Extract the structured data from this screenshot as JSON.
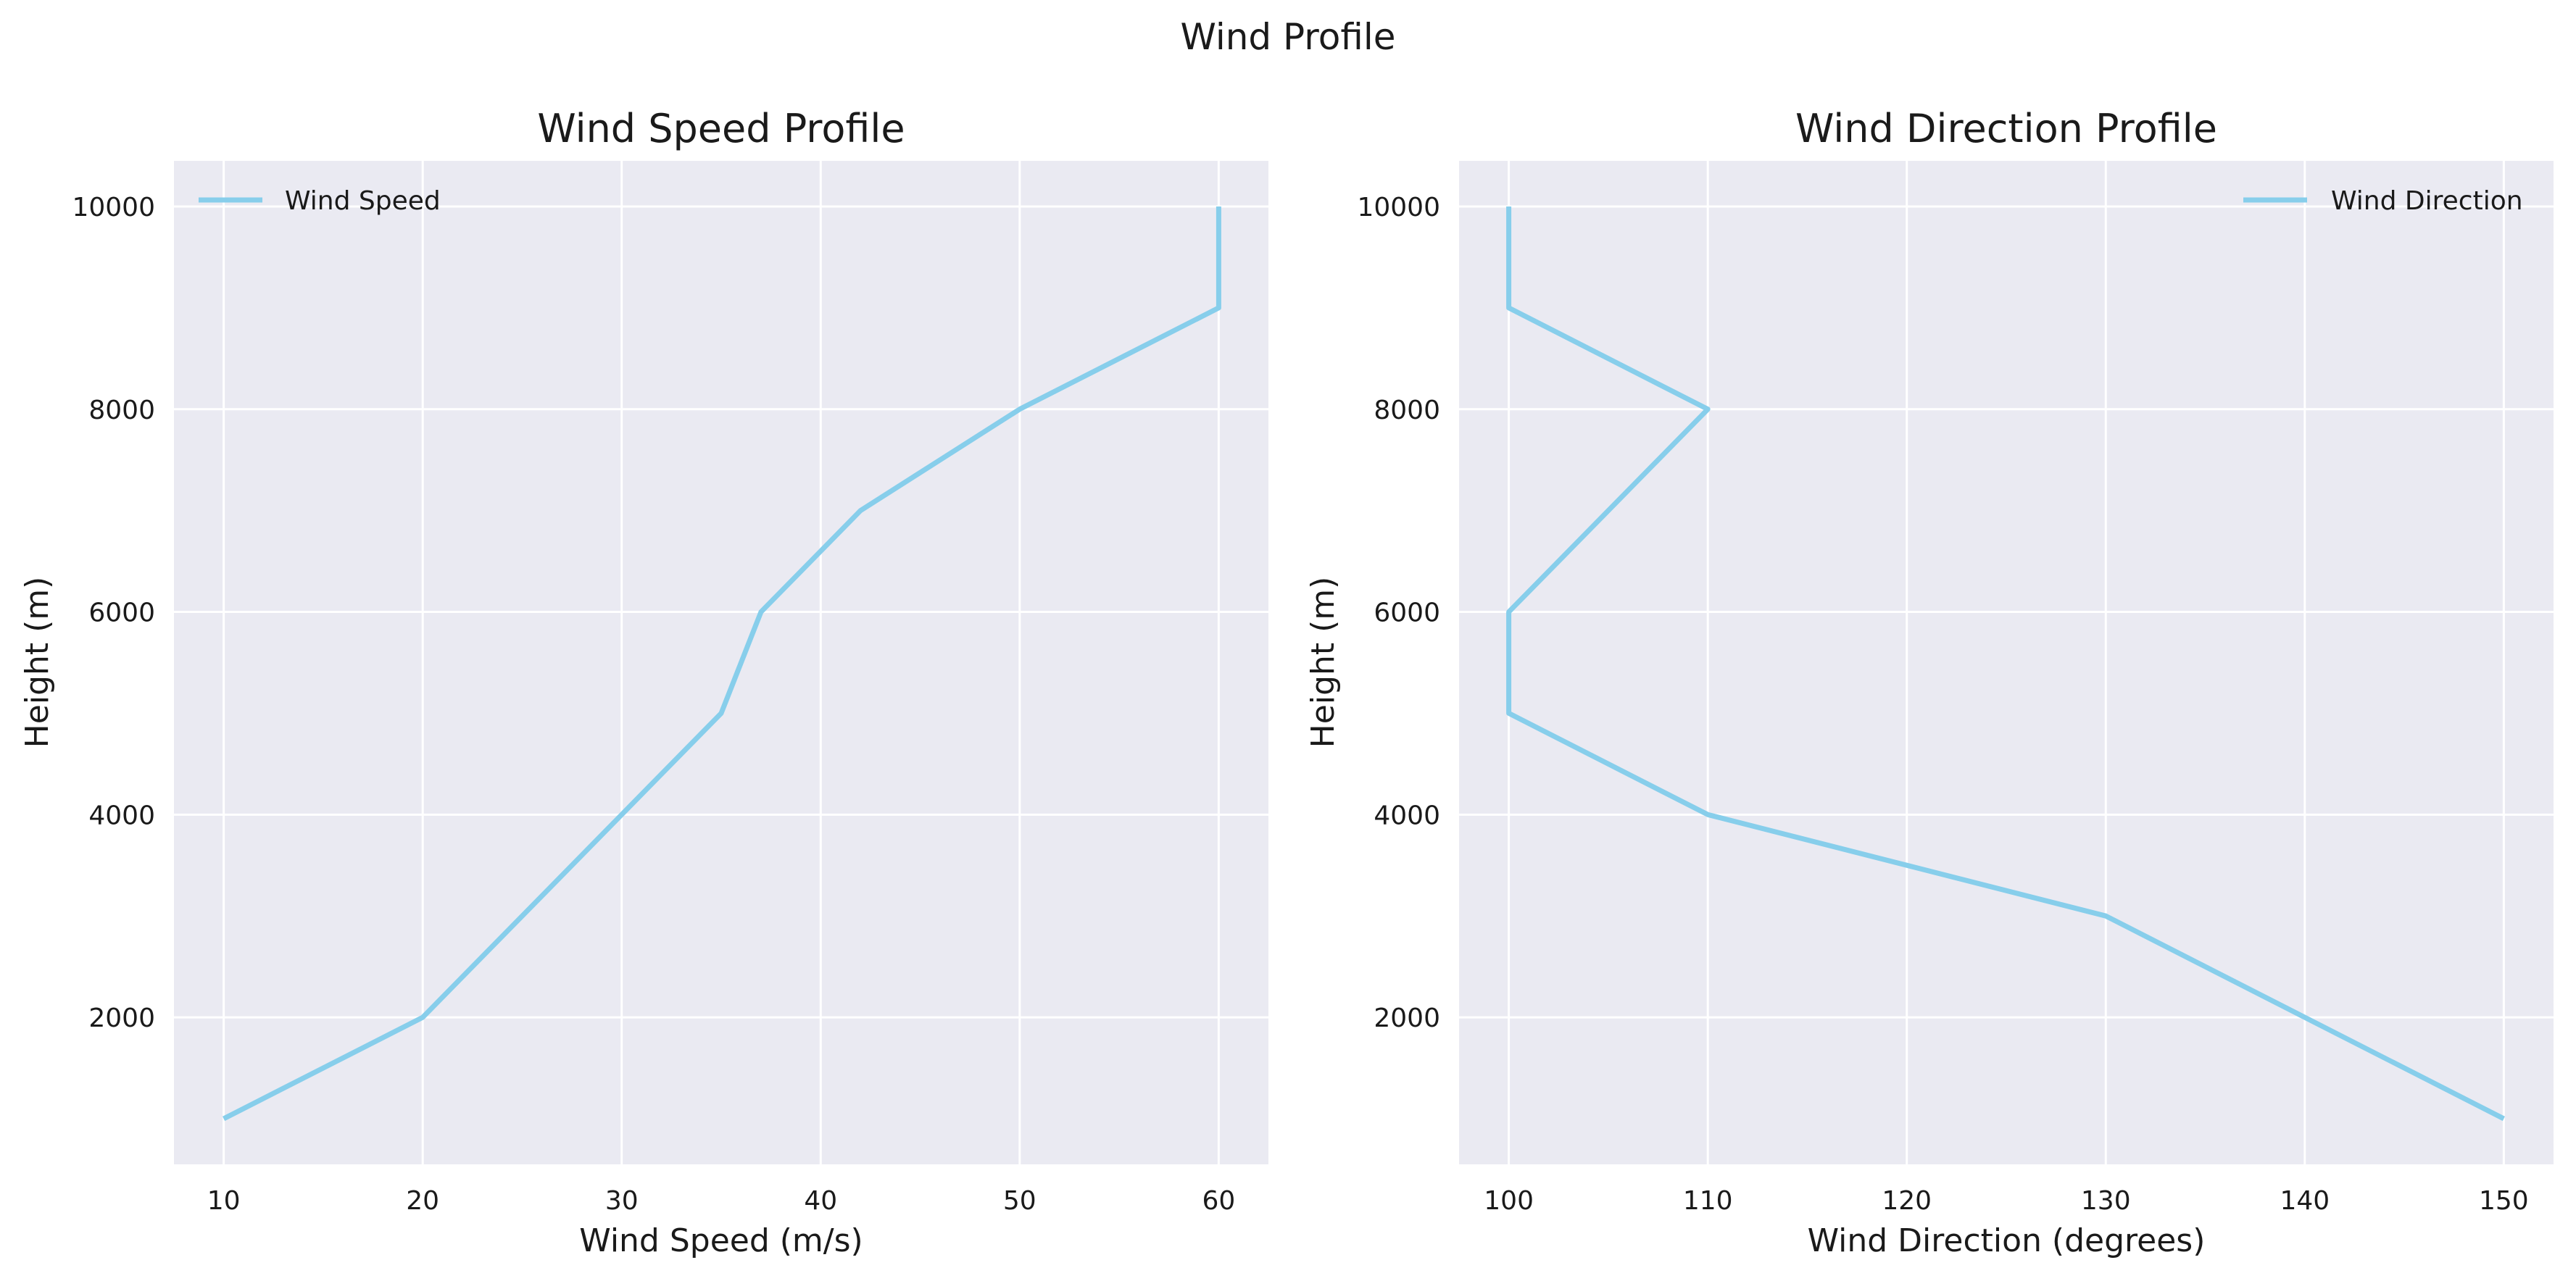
{
  "figure_title": "Wind Profile",
  "chart_data": [
    {
      "type": "line",
      "title": "Wind Speed Profile",
      "xlabel": "Wind Speed (m/s)",
      "ylabel": "Height (m)",
      "xlim": [
        7.5,
        62.5
      ],
      "ylim": [
        550,
        10450
      ],
      "xticks": [
        10,
        20,
        30,
        40,
        50,
        60
      ],
      "yticks": [
        2000,
        4000,
        6000,
        8000,
        10000
      ],
      "grid": true,
      "legend_position": "upper-left",
      "color": "#87CEEB",
      "series": [
        {
          "name": "Wind Speed",
          "points": [
            [
              10,
              1000
            ],
            [
              20,
              2000
            ],
            [
              30,
              4000
            ],
            [
              35,
              5000
            ],
            [
              37,
              6000
            ],
            [
              42,
              7000
            ],
            [
              50,
              8000
            ],
            [
              60,
              9000
            ],
            [
              60,
              10000
            ]
          ]
        }
      ]
    },
    {
      "type": "line",
      "title": "Wind Direction Profile",
      "xlabel": "Wind Direction (degrees)",
      "ylabel": "Height (m)",
      "xlim": [
        97.5,
        152.5
      ],
      "ylim": [
        550,
        10450
      ],
      "xticks": [
        100,
        110,
        120,
        130,
        140,
        150
      ],
      "yticks": [
        2000,
        4000,
        6000,
        8000,
        10000
      ],
      "grid": true,
      "legend_position": "upper-right",
      "color": "#87CEEB",
      "series": [
        {
          "name": "Wind Direction",
          "points": [
            [
              150,
              1000
            ],
            [
              140,
              2000
            ],
            [
              130,
              3000
            ],
            [
              110,
              4000
            ],
            [
              100,
              5000
            ],
            [
              100,
              6000
            ],
            [
              110,
              8000
            ],
            [
              100,
              9000
            ],
            [
              100,
              10000
            ]
          ]
        }
      ]
    }
  ]
}
